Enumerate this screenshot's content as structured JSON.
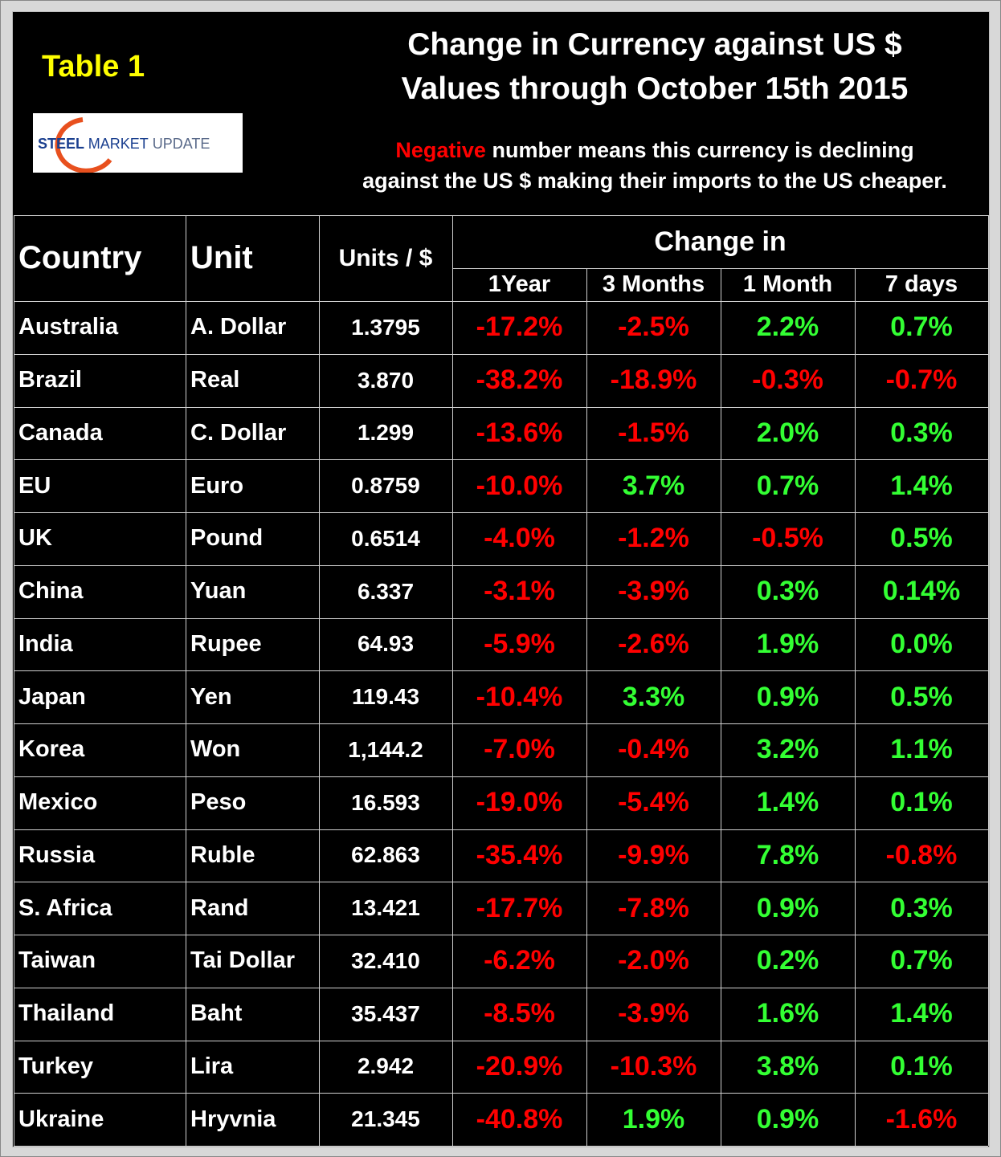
{
  "header": {
    "label": "Table 1",
    "title": [
      "Change in Currency against US $",
      "Values through October 15th 2015"
    ],
    "note": {
      "highlight": "Negative",
      "line1": "number means this currency is declining",
      "line2": "against the US $ making their imports to the US cheaper."
    },
    "logo": [
      "STEEL",
      "MARKET",
      "UPDATE"
    ]
  },
  "table": {
    "columns": [
      "Country",
      "Unit",
      "Units / $"
    ],
    "group": "Change in",
    "subcolumns": [
      "1Year",
      "3 Months",
      "1 Month",
      "7 days"
    ],
    "rows": [
      [
        "Australia",
        "A. Dollar",
        "1.3795",
        "-17.2%",
        "-2.5%",
        "2.2%",
        "0.7%"
      ],
      [
        "Brazil",
        "Real",
        "3.870",
        "-38.2%",
        "-18.9%",
        "-0.3%",
        "-0.7%"
      ],
      [
        "Canada",
        "C. Dollar",
        "1.299",
        "-13.6%",
        "-1.5%",
        "2.0%",
        "0.3%"
      ],
      [
        "EU",
        "Euro",
        "0.8759",
        "-10.0%",
        "3.7%",
        "0.7%",
        "1.4%"
      ],
      [
        "UK",
        "Pound",
        "0.6514",
        "-4.0%",
        "-1.2%",
        "-0.5%",
        "0.5%"
      ],
      [
        "China",
        "Yuan",
        "6.337",
        "-3.1%",
        "-3.9%",
        "0.3%",
        "0.14%"
      ],
      [
        "India",
        "Rupee",
        "64.93",
        "-5.9%",
        "-2.6%",
        "1.9%",
        "0.0%"
      ],
      [
        "Japan",
        "Yen",
        "119.43",
        "-10.4%",
        "3.3%",
        "0.9%",
        "0.5%"
      ],
      [
        "Korea",
        "Won",
        "1,144.2",
        "-7.0%",
        "-0.4%",
        "3.2%",
        "1.1%"
      ],
      [
        "Mexico",
        "Peso",
        "16.593",
        "-19.0%",
        "-5.4%",
        "1.4%",
        "0.1%"
      ],
      [
        "Russia",
        "Ruble",
        "62.863",
        "-35.4%",
        "-9.9%",
        "7.8%",
        "-0.8%"
      ],
      [
        "S. Africa",
        "Rand",
        "13.421",
        "-17.7%",
        "-7.8%",
        "0.9%",
        "0.3%"
      ],
      [
        "Taiwan",
        "Tai Dollar",
        "32.410",
        "-6.2%",
        "-2.0%",
        "0.2%",
        "0.7%"
      ],
      [
        "Thailand",
        "Baht",
        "35.437",
        "-8.5%",
        "-3.9%",
        "1.6%",
        "1.4%"
      ],
      [
        "Turkey",
        "Lira",
        "2.942",
        "-20.9%",
        "-10.3%",
        "3.8%",
        "0.1%"
      ],
      [
        "Ukraine",
        "Hryvnia",
        "21.345",
        "-40.8%",
        "1.9%",
        "0.9%",
        "-1.6%"
      ]
    ]
  }
}
